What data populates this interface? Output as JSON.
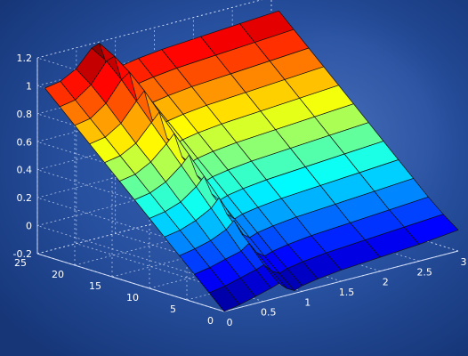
{
  "chart_data": {
    "type": "surface",
    "title": "",
    "xlabel": "",
    "ylabel": "",
    "zlabel": "",
    "xlim": [
      0,
      3
    ],
    "ylim": [
      0,
      25
    ],
    "zlim": [
      -0.2,
      1.2
    ],
    "grid": true,
    "colormap": "jet",
    "x_ticks": [
      "0",
      "0.5",
      "1",
      "1.5",
      "2",
      "2.5",
      "3"
    ],
    "y_ticks": [
      "0",
      "5",
      "10",
      "15",
      "20",
      "25"
    ],
    "z_ticks": [
      "-0.2",
      "0",
      "0.2",
      "0.4",
      "0.6",
      "0.8",
      "1",
      "1.2"
    ],
    "x": [
      0,
      0.2,
      0.4,
      0.6,
      0.7,
      0.8,
      0.9,
      1.0,
      1.2,
      1.5,
      2.0,
      2.5,
      3.0
    ],
    "y": [
      0,
      2,
      4,
      6,
      8,
      10,
      12,
      14,
      16,
      18,
      20,
      22,
      24
    ],
    "z": [
      [
        -0.2,
        -0.18,
        -0.15,
        -0.12,
        -0.1,
        -0.15,
        -0.18,
        -0.16,
        -0.14,
        -0.12,
        -0.1,
        -0.08,
        -0.05
      ],
      [
        -0.1,
        -0.08,
        -0.05,
        -0.02,
        0.0,
        -0.06,
        -0.09,
        -0.07,
        -0.05,
        -0.03,
        -0.01,
        0.01,
        0.03
      ],
      [
        0.0,
        0.02,
        0.05,
        0.08,
        0.12,
        0.04,
        0.0,
        0.02,
        0.04,
        0.06,
        0.08,
        0.1,
        0.12
      ],
      [
        0.1,
        0.12,
        0.15,
        0.2,
        0.25,
        0.14,
        0.1,
        0.12,
        0.14,
        0.16,
        0.18,
        0.2,
        0.22
      ],
      [
        0.2,
        0.22,
        0.26,
        0.32,
        0.38,
        0.25,
        0.2,
        0.22,
        0.24,
        0.26,
        0.28,
        0.3,
        0.32
      ],
      [
        0.3,
        0.32,
        0.36,
        0.44,
        0.5,
        0.36,
        0.3,
        0.32,
        0.34,
        0.36,
        0.38,
        0.4,
        0.42
      ],
      [
        0.4,
        0.42,
        0.47,
        0.56,
        0.62,
        0.46,
        0.4,
        0.42,
        0.44,
        0.46,
        0.48,
        0.5,
        0.52
      ],
      [
        0.5,
        0.52,
        0.58,
        0.68,
        0.74,
        0.56,
        0.5,
        0.52,
        0.54,
        0.56,
        0.58,
        0.6,
        0.62
      ],
      [
        0.6,
        0.62,
        0.68,
        0.8,
        0.86,
        0.66,
        0.6,
        0.62,
        0.64,
        0.66,
        0.68,
        0.7,
        0.72
      ],
      [
        0.7,
        0.72,
        0.79,
        0.92,
        0.98,
        0.76,
        0.7,
        0.72,
        0.74,
        0.76,
        0.78,
        0.8,
        0.82
      ],
      [
        0.8,
        0.82,
        0.9,
        1.04,
        1.08,
        0.86,
        0.8,
        0.82,
        0.84,
        0.86,
        0.88,
        0.9,
        0.92
      ],
      [
        0.9,
        0.92,
        1.0,
        1.14,
        1.16,
        0.96,
        0.9,
        0.92,
        0.94,
        0.96,
        0.98,
        1.0,
        1.02
      ],
      [
        1.0,
        1.02,
        1.08,
        1.2,
        1.22,
        1.04,
        1.0,
        1.02,
        1.04,
        1.06,
        1.08,
        1.1,
        1.12
      ]
    ]
  }
}
